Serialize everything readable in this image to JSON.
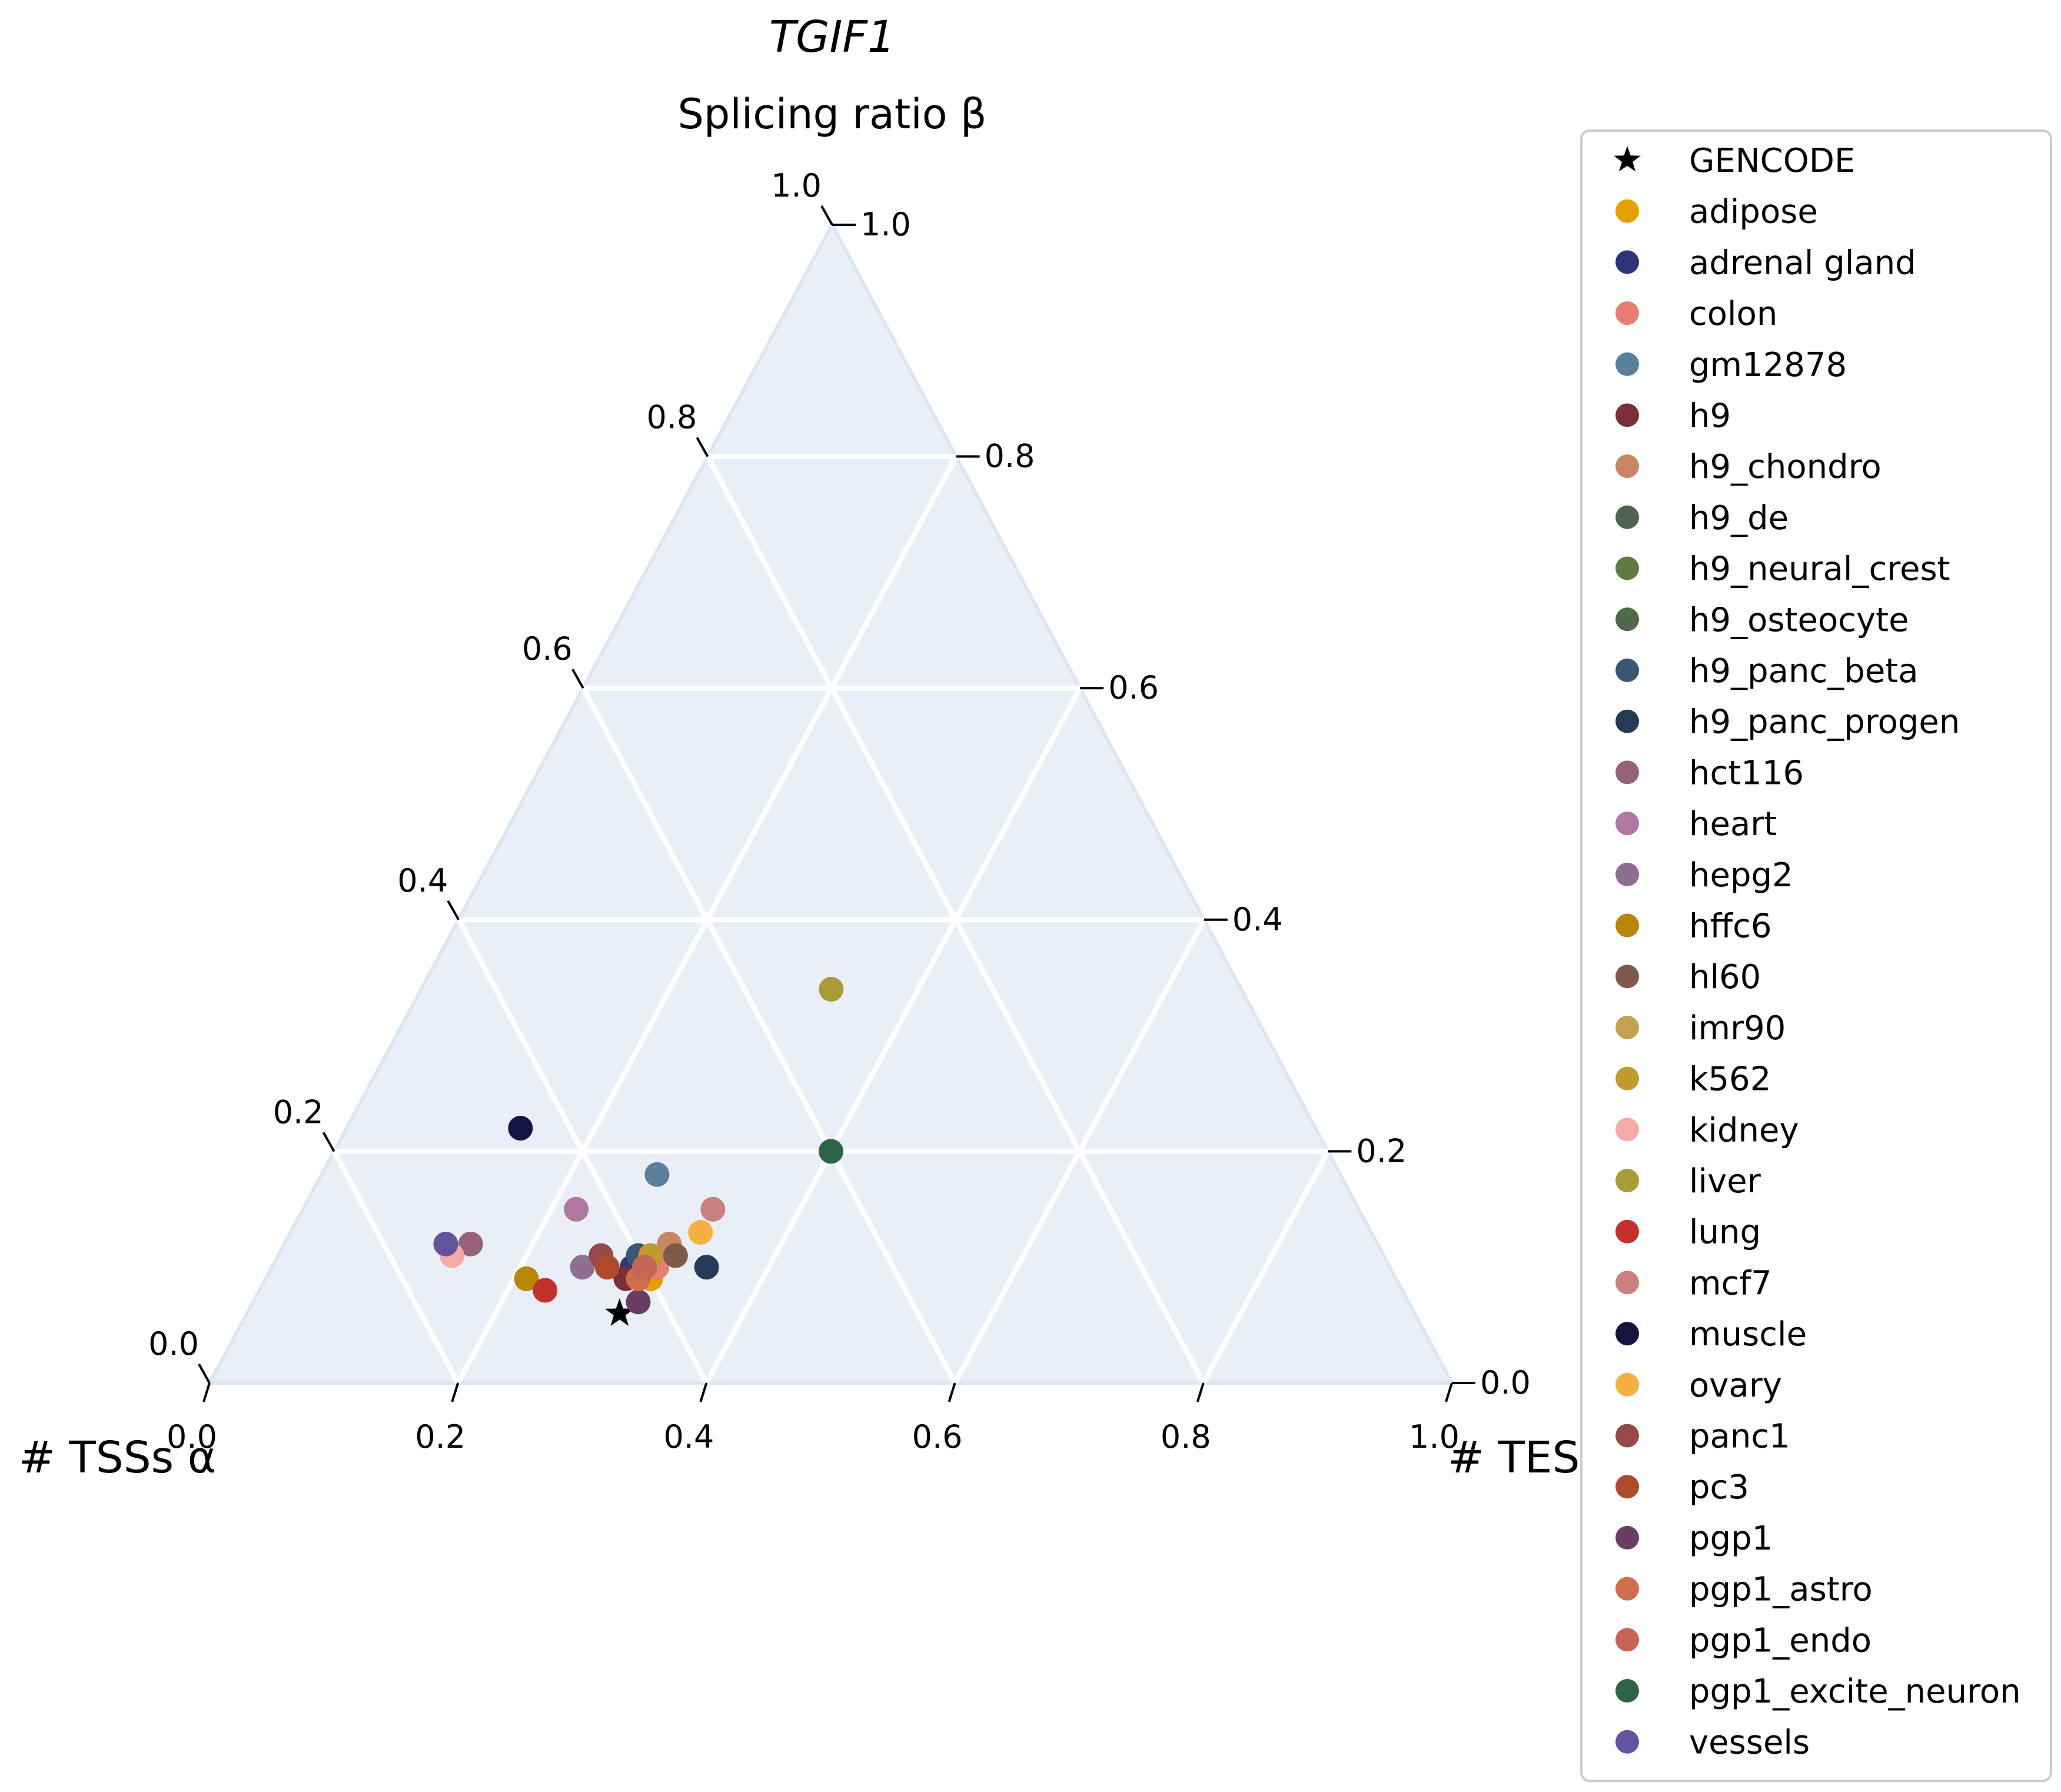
{
  "chart_data": {
    "type": "scatter",
    "title": "TGIF1",
    "subtitle": "Splicing ratio β",
    "axes": {
      "alpha_label": "# TSSs α",
      "beta_label": "Splicing ratio β",
      "gamma_label": "# TESs γ",
      "range": [
        0,
        1
      ],
      "ticks": [
        "0.0",
        "0.2",
        "0.4",
        "0.6",
        "0.8",
        "1.0"
      ]
    },
    "grid": true,
    "legend_position": "right",
    "series": [
      {
        "name": "GENCODE",
        "color": "#000000",
        "marker": "star",
        "points": [
          {
            "alpha": 0.64,
            "beta": 0.06,
            "gamma": 0.3
          }
        ]
      },
      {
        "name": "adipose",
        "color": "#e69f00",
        "marker": "circle",
        "points": [
          {
            "alpha": 0.6,
            "beta": 0.09,
            "gamma": 0.31
          }
        ]
      },
      {
        "name": "adrenal gland",
        "color": "#2e3478",
        "marker": "circle",
        "points": [
          {
            "alpha": 0.61,
            "beta": 0.1,
            "gamma": 0.29
          }
        ]
      },
      {
        "name": "colon",
        "color": "#e67e72",
        "marker": "circle",
        "points": [
          {
            "alpha": 0.59,
            "beta": 0.1,
            "gamma": 0.31
          }
        ]
      },
      {
        "name": "gm12878",
        "color": "#5a7f9a",
        "marker": "circle",
        "points": [
          {
            "alpha": 0.55,
            "beta": 0.18,
            "gamma": 0.27
          }
        ]
      },
      {
        "name": "h9",
        "color": "#7b3039",
        "marker": "circle",
        "points": [
          {
            "alpha": 0.62,
            "beta": 0.09,
            "gamma": 0.29
          }
        ]
      },
      {
        "name": "h9_chondro",
        "color": "#c88665",
        "marker": "circle",
        "points": [
          {
            "alpha": 0.57,
            "beta": 0.12,
            "gamma": 0.31
          }
        ]
      },
      {
        "name": "h9_de",
        "color": "#4e6450",
        "marker": "circle",
        "points": [
          {
            "alpha": 0.6,
            "beta": 0.1,
            "gamma": 0.3
          }
        ]
      },
      {
        "name": "h9_neural_crest",
        "color": "#5e7b41",
        "marker": "circle",
        "points": [
          {
            "alpha": 0.6,
            "beta": 0.1,
            "gamma": 0.3
          }
        ]
      },
      {
        "name": "h9_osteocyte",
        "color": "#4e6a48",
        "marker": "circle",
        "points": [
          {
            "alpha": 0.6,
            "beta": 0.11,
            "gamma": 0.29
          }
        ]
      },
      {
        "name": "h9_panc_beta",
        "color": "#3a5675",
        "marker": "circle",
        "points": [
          {
            "alpha": 0.6,
            "beta": 0.11,
            "gamma": 0.29
          }
        ]
      },
      {
        "name": "h9_panc_progen",
        "color": "#253a55",
        "marker": "circle",
        "points": [
          {
            "alpha": 0.55,
            "beta": 0.1,
            "gamma": 0.35
          }
        ]
      },
      {
        "name": "hct116",
        "color": "#956279",
        "marker": "circle",
        "points": [
          {
            "alpha": 0.73,
            "beta": 0.12,
            "gamma": 0.15
          }
        ]
      },
      {
        "name": "heart",
        "color": "#b077a0",
        "marker": "circle",
        "points": [
          {
            "alpha": 0.63,
            "beta": 0.15,
            "gamma": 0.22
          }
        ]
      },
      {
        "name": "hepg2",
        "color": "#8e6e92",
        "marker": "circle",
        "points": [
          {
            "alpha": 0.65,
            "beta": 0.1,
            "gamma": 0.25
          }
        ]
      },
      {
        "name": "hffc6",
        "color": "#b8860b",
        "marker": "circle",
        "points": [
          {
            "alpha": 0.7,
            "beta": 0.09,
            "gamma": 0.21
          }
        ]
      },
      {
        "name": "hl60",
        "color": "#7d5a4a",
        "marker": "circle",
        "points": [
          {
            "alpha": 0.57,
            "beta": 0.11,
            "gamma": 0.32
          }
        ]
      },
      {
        "name": "imr90",
        "color": "#c4a050",
        "marker": "circle",
        "points": [
          {
            "alpha": 0.59,
            "beta": 0.11,
            "gamma": 0.3
          }
        ]
      },
      {
        "name": "k562",
        "color": "#c29a2e",
        "marker": "circle",
        "points": [
          {
            "alpha": 0.59,
            "beta": 0.11,
            "gamma": 0.3
          }
        ]
      },
      {
        "name": "kidney",
        "color": "#f4aaa6",
        "marker": "circle",
        "points": [
          {
            "alpha": 0.75,
            "beta": 0.11,
            "gamma": 0.14
          }
        ]
      },
      {
        "name": "liver",
        "color": "#a89c36",
        "marker": "circle",
        "points": [
          {
            "alpha": 0.33,
            "beta": 0.34,
            "gamma": 0.33
          }
        ]
      },
      {
        "name": "lung",
        "color": "#c0322b",
        "marker": "circle",
        "points": [
          {
            "alpha": 0.69,
            "beta": 0.08,
            "gamma": 0.23
          }
        ]
      },
      {
        "name": "mcf7",
        "color": "#c98180",
        "marker": "circle",
        "points": [
          {
            "alpha": 0.52,
            "beta": 0.15,
            "gamma": 0.33
          }
        ]
      },
      {
        "name": "muscle",
        "color": "#14133f",
        "marker": "circle",
        "points": [
          {
            "alpha": 0.64,
            "beta": 0.22,
            "gamma": 0.14
          }
        ]
      },
      {
        "name": "ovary",
        "color": "#f4b142",
        "marker": "circle",
        "points": [
          {
            "alpha": 0.54,
            "beta": 0.13,
            "gamma": 0.33
          }
        ]
      },
      {
        "name": "panc1",
        "color": "#954a4a",
        "marker": "circle",
        "points": [
          {
            "alpha": 0.63,
            "beta": 0.11,
            "gamma": 0.26
          }
        ]
      },
      {
        "name": "pc3",
        "color": "#ad4b2b",
        "marker": "circle",
        "points": [
          {
            "alpha": 0.63,
            "beta": 0.1,
            "gamma": 0.27
          }
        ]
      },
      {
        "name": "pgp1",
        "color": "#6a3d65",
        "marker": "circle",
        "points": [
          {
            "alpha": 0.62,
            "beta": 0.07,
            "gamma": 0.31
          }
        ]
      },
      {
        "name": "pgp1_astro",
        "color": "#cf6e4c",
        "marker": "circle",
        "points": [
          {
            "alpha": 0.61,
            "beta": 0.09,
            "gamma": 0.3
          }
        ]
      },
      {
        "name": "pgp1_endo",
        "color": "#c66556",
        "marker": "circle",
        "points": [
          {
            "alpha": 0.6,
            "beta": 0.1,
            "gamma": 0.3
          }
        ]
      },
      {
        "name": "pgp1_excite_neuron",
        "color": "#2e6446",
        "marker": "circle",
        "points": [
          {
            "alpha": 0.4,
            "beta": 0.2,
            "gamma": 0.4
          }
        ]
      },
      {
        "name": "vessels",
        "color": "#6454a0",
        "marker": "circle",
        "points": [
          {
            "alpha": 0.75,
            "beta": 0.12,
            "gamma": 0.13
          }
        ]
      }
    ]
  }
}
